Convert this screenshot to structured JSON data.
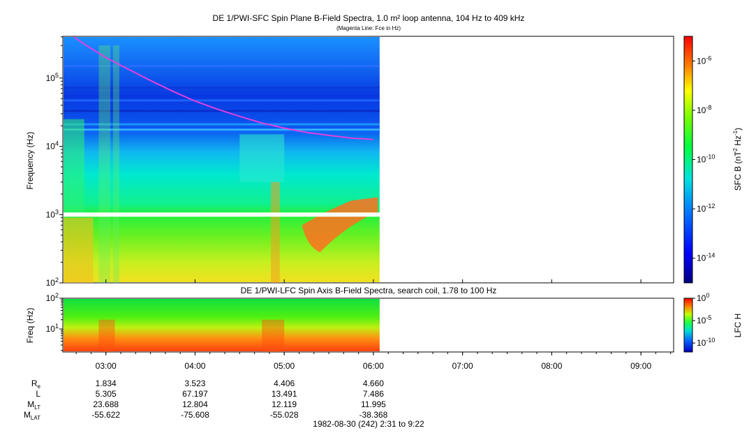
{
  "chart_data": [
    {
      "type": "heatmap",
      "title": "DE 1/PWI-SFC  Spin Plane B-Field Spectra, 1.0 m² loop antenna, 104 Hz to 409 kHz",
      "subtitle": "(Magenta Line: Fce in Hz)",
      "ylabel": "Frequency (Hz)",
      "yscale": "log",
      "ylim": [
        100,
        409000
      ],
      "y_ticks": [
        {
          "value": 100,
          "base": "10",
          "exp": "2"
        },
        {
          "value": 1000,
          "base": "10",
          "exp": "3"
        },
        {
          "value": 10000,
          "base": "10",
          "exp": "4"
        },
        {
          "value": 100000,
          "base": "10",
          "exp": "5"
        }
      ],
      "data_end_hour": 6.07,
      "colorbar": {
        "label": "SFC B",
        "units_base": "nT",
        "units_exp1": "2",
        "units_mid": " Hz",
        "units_exp2": "-1",
        "scale": "log",
        "range": [
          1e-15,
          1e-05
        ],
        "ticks": [
          {
            "value": 1e-06,
            "base": "10",
            "exp": "-6"
          },
          {
            "value": 1e-08,
            "base": "10",
            "exp": "-8"
          },
          {
            "value": 1e-10,
            "base": "10",
            "exp": "-10"
          },
          {
            "value": 1e-12,
            "base": "10",
            "exp": "-12"
          },
          {
            "value": 1e-14,
            "base": "10",
            "exp": "-14"
          }
        ]
      },
      "fce_line": {
        "color": "#e040e0",
        "x": [
          2.64,
          2.8,
          3.0,
          3.25,
          3.5,
          3.75,
          4.0,
          4.25,
          4.5,
          4.75,
          5.0,
          5.25,
          5.5,
          5.75,
          6.0
        ],
        "y": [
          400000,
          290000,
          200000,
          135000,
          92000,
          64000,
          46000,
          35000,
          27500,
          22000,
          18500,
          16000,
          14500,
          13200,
          12600
        ]
      }
    },
    {
      "type": "heatmap",
      "title": "DE 1/PWI-LFC  Spin Axis B-Field Spectra, search coil, 1.78 to 100 Hz",
      "ylabel": "Freq (Hz)",
      "yscale": "log",
      "ylim": [
        1.78,
        100
      ],
      "y_ticks": [
        {
          "value": 10,
          "base": "10",
          "exp": "1"
        },
        {
          "value": 100,
          "base": "10",
          "exp": "2"
        }
      ],
      "data_end_hour": 6.07,
      "colorbar": {
        "label": "LFC H",
        "scale": "log",
        "range": [
          1e-12,
          1
        ],
        "ticks": [
          {
            "value": 1,
            "base": "10",
            "exp": "0"
          },
          {
            "value": 1e-05,
            "base": "10",
            "exp": "-5"
          },
          {
            "value": 1e-10,
            "base": "10",
            "exp": "-10"
          }
        ]
      }
    }
  ],
  "time_axis": {
    "xlim_hours": [
      2.517,
      9.367
    ],
    "ticks": [
      {
        "hour": 3,
        "label": "03:00",
        "re": "1.834",
        "l": "5.305",
        "mlt": "23.688",
        "mlat": "-55.622"
      },
      {
        "hour": 4,
        "label": "04:00",
        "re": "3.523",
        "l": "67.197",
        "mlt": "12.804",
        "mlat": "-75.608"
      },
      {
        "hour": 5,
        "label": "05:00",
        "re": "4.406",
        "l": "13.491",
        "mlt": "12.119",
        "mlat": "-55.028"
      },
      {
        "hour": 6,
        "label": "06:00",
        "re": "4.660",
        "l": "7.486",
        "mlt": "11.995",
        "mlat": "-38.368"
      },
      {
        "hour": 7,
        "label": "07:00",
        "re": "",
        "l": "",
        "mlt": "",
        "mlat": ""
      },
      {
        "hour": 8,
        "label": "08:00",
        "re": "",
        "l": "",
        "mlt": "",
        "mlat": ""
      },
      {
        "hour": 9,
        "label": "09:00",
        "re": "",
        "l": "",
        "mlt": "",
        "mlat": ""
      }
    ],
    "ephemeris_labels": {
      "re": {
        "base": "R",
        "sub": "e"
      },
      "l": {
        "base": "L",
        "sub": ""
      },
      "mlt": {
        "base": "M",
        "sub": "LT"
      },
      "mlat": {
        "base": "M",
        "sub": "LAT"
      }
    },
    "footer": "1982-08-30 (242) 2:31 to 9:22"
  }
}
